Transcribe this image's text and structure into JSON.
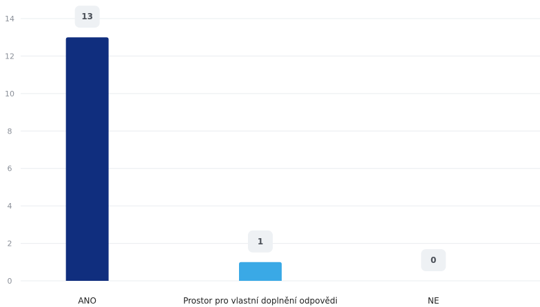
{
  "chart_data": {
    "type": "bar",
    "categories": [
      "ANO",
      "Prostor pro vlastní doplnění odpovědi",
      "NE"
    ],
    "values": [
      13,
      1,
      0
    ],
    "colors": [
      "#102e7e",
      "#3aa9e6",
      "#cfd8e3"
    ],
    "ylim": [
      0,
      14
    ],
    "yticks": [
      0,
      2,
      4,
      6,
      8,
      10,
      12,
      14
    ],
    "data_labels": [
      "13",
      "1",
      "0"
    ],
    "grid": true,
    "legend": "none",
    "title": "",
    "xlabel": "",
    "ylabel": ""
  }
}
